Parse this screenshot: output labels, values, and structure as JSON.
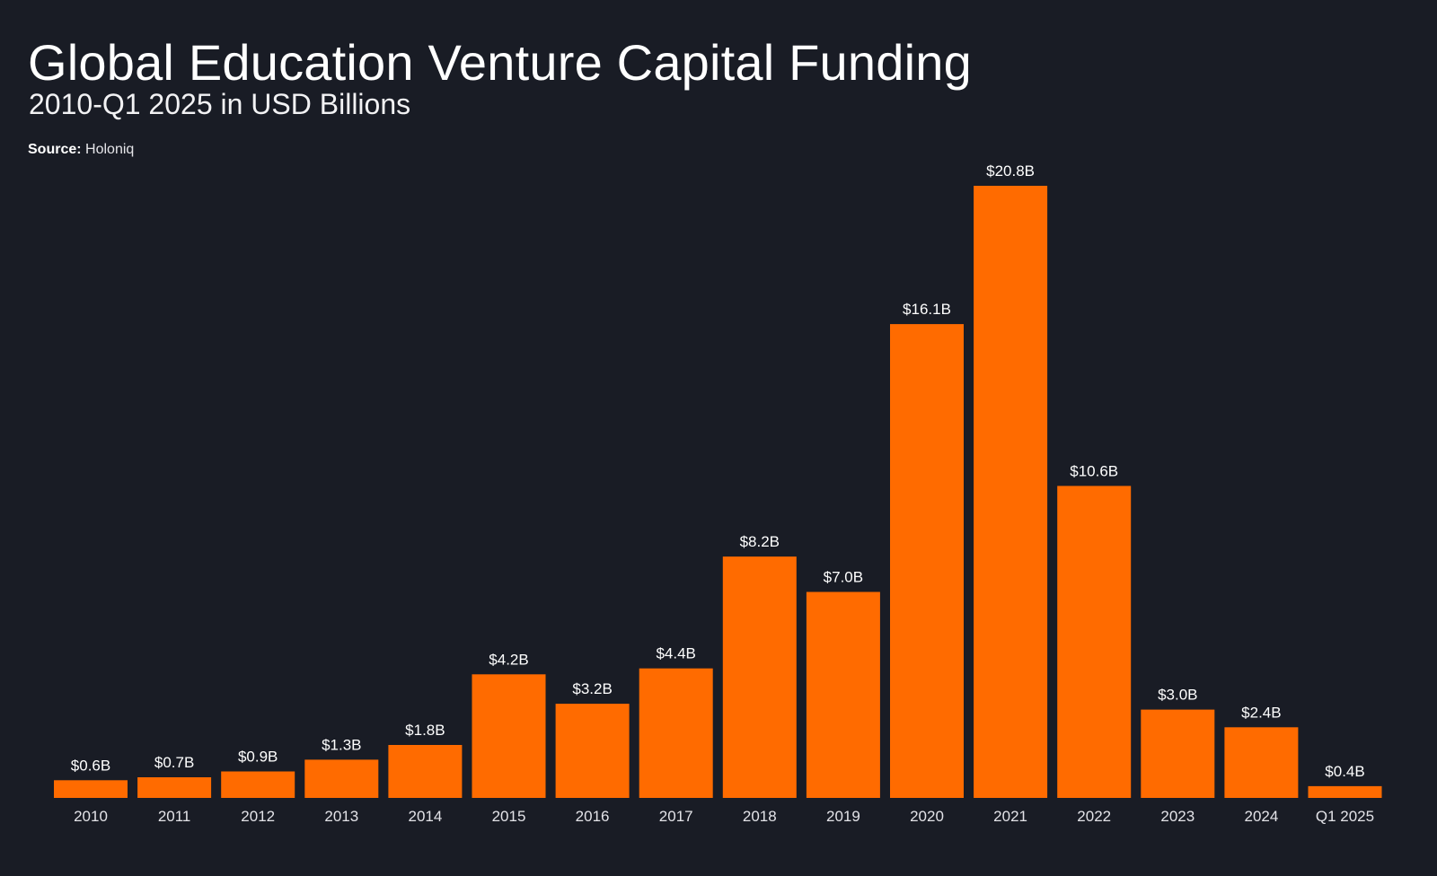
{
  "header": {
    "title": "Global Education Venture Capital Funding",
    "subtitle": "2010-Q1 2025 in USD Billions",
    "source_label": "Source:",
    "source_name": "Holoniq"
  },
  "colors": {
    "background": "#191c25",
    "bar": "#ff6b00",
    "text": "#ffffff"
  },
  "chart_data": {
    "type": "bar",
    "categories": [
      "2010",
      "2011",
      "2012",
      "2013",
      "2014",
      "2015",
      "2016",
      "2017",
      "2018",
      "2019",
      "2020",
      "2021",
      "2022",
      "2023",
      "2024",
      "Q1 2025"
    ],
    "values": [
      0.6,
      0.7,
      0.9,
      1.3,
      1.8,
      4.2,
      3.2,
      4.4,
      8.2,
      7.0,
      16.1,
      20.8,
      10.6,
      3.0,
      2.4,
      0.4
    ],
    "data_labels": [
      "$0.6B",
      "$0.7B",
      "$0.9B",
      "$1.3B",
      "$1.8B",
      "$4.2B",
      "$3.2B",
      "$4.4B",
      "$8.2B",
      "$7.0B",
      "$16.1B",
      "$20.8B",
      "$10.6B",
      "$3.0B",
      "$2.4B",
      "$0.4B"
    ],
    "title": "Global Education Venture Capital Funding",
    "subtitle": "2010-Q1 2025 in USD Billions",
    "ylim": [
      0,
      20.8
    ],
    "grid": false,
    "legend": "none"
  }
}
